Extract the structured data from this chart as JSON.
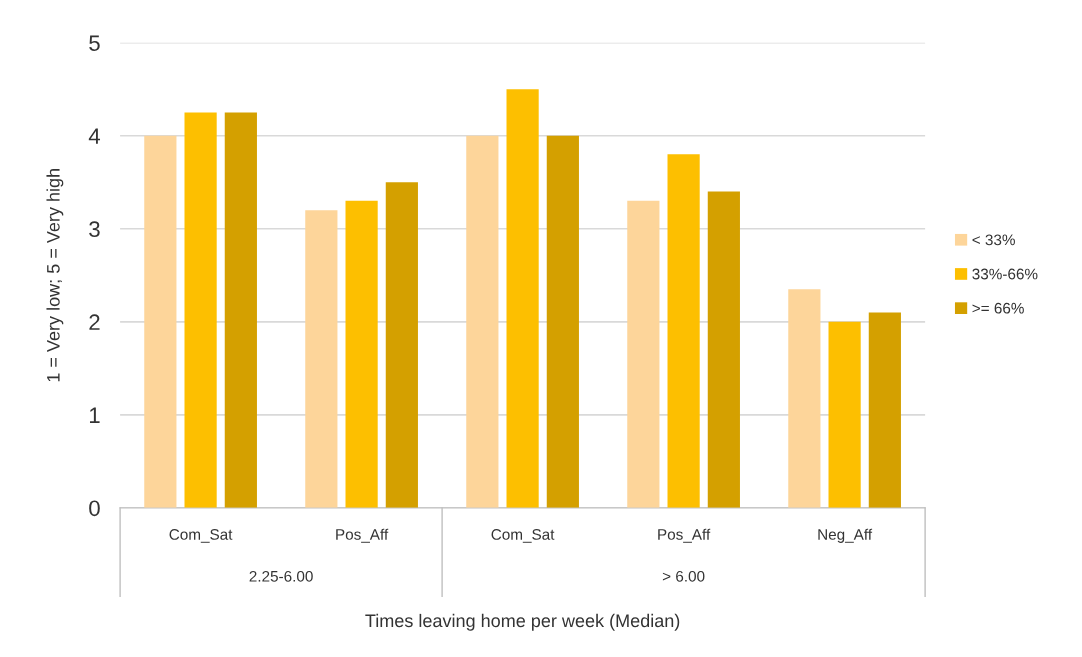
{
  "chart_data": {
    "type": "bar",
    "xlabel": "Times leaving home per week (Median)",
    "ylabel": "1 = Very low; 5 = Very high",
    "categories": [
      "Com_Sat",
      "Pos_Aff",
      "Com_Sat",
      "Pos_Aff",
      "Neg_Aff"
    ],
    "annotations": [
      "2.25-6.00",
      "> 6.00"
    ],
    "series": [
      {
        "name": "< 33%",
        "color": "#fdd59a",
        "values": [
          4.0,
          3.2,
          4.0,
          3.3,
          2.35
        ]
      },
      {
        "name": "33%-66%",
        "color": "#fdbf00",
        "values": [
          4.25,
          3.3,
          4.5,
          3.8,
          2.0
        ]
      },
      {
        "name": ">= 66%",
        "color": "#d4a000",
        "values": [
          4.25,
          3.5,
          4.0,
          3.4,
          2.1
        ]
      }
    ],
    "ylim": [
      0,
      5
    ],
    "yticks": [
      0,
      1,
      2,
      3,
      4,
      5
    ],
    "grid": "y",
    "legend": "right"
  }
}
